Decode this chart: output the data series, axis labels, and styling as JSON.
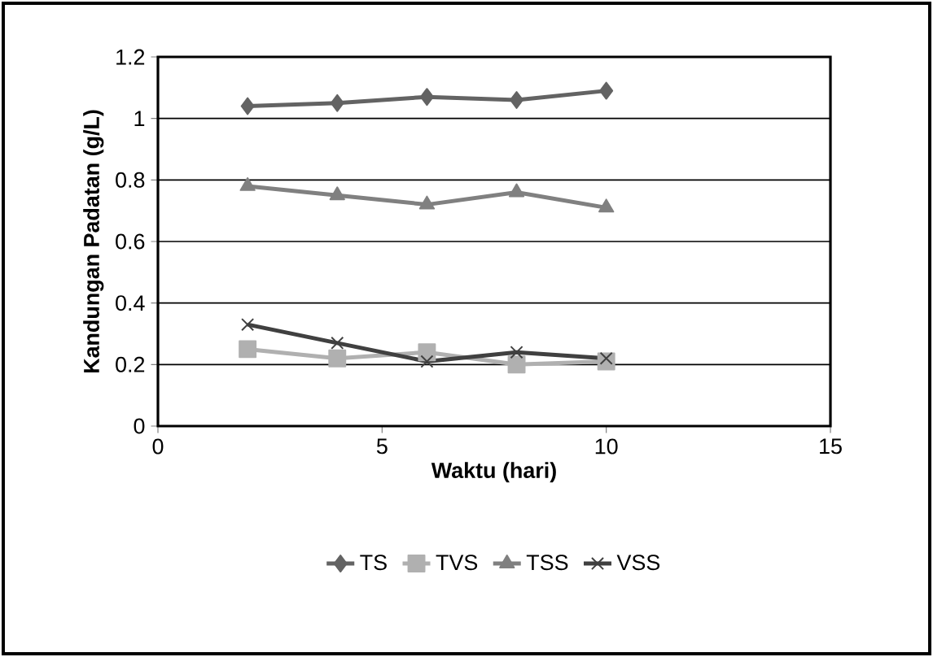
{
  "chart_data": {
    "type": "line",
    "xlabel": "Waktu (hari)",
    "ylabel": "Kandungan Padatan (g/L)",
    "x": [
      2,
      4,
      6,
      8,
      10
    ],
    "series": [
      {
        "name": "TS",
        "color": "#636363",
        "marker": "diamond",
        "values": [
          1.04,
          1.05,
          1.07,
          1.06,
          1.09
        ]
      },
      {
        "name": "TVS",
        "color": "#b0b0b0",
        "marker": "square",
        "values": [
          0.25,
          0.22,
          0.24,
          0.2,
          0.21
        ]
      },
      {
        "name": "TSS",
        "color": "#808080",
        "marker": "triangle",
        "values": [
          0.78,
          0.75,
          0.72,
          0.76,
          0.71
        ]
      },
      {
        "name": "VSS",
        "color": "#404040",
        "marker": "cross",
        "values": [
          0.33,
          0.27,
          0.21,
          0.24,
          0.22
        ]
      }
    ],
    "xlim": [
      0,
      15
    ],
    "xticks": [
      0,
      5,
      10,
      15
    ],
    "ylim": [
      0,
      1.2
    ],
    "yticks": [
      0,
      0.2,
      0.4,
      0.6,
      0.8,
      1,
      1.2
    ],
    "grid": "y",
    "legend": "bottom",
    "line_style": "solid"
  }
}
